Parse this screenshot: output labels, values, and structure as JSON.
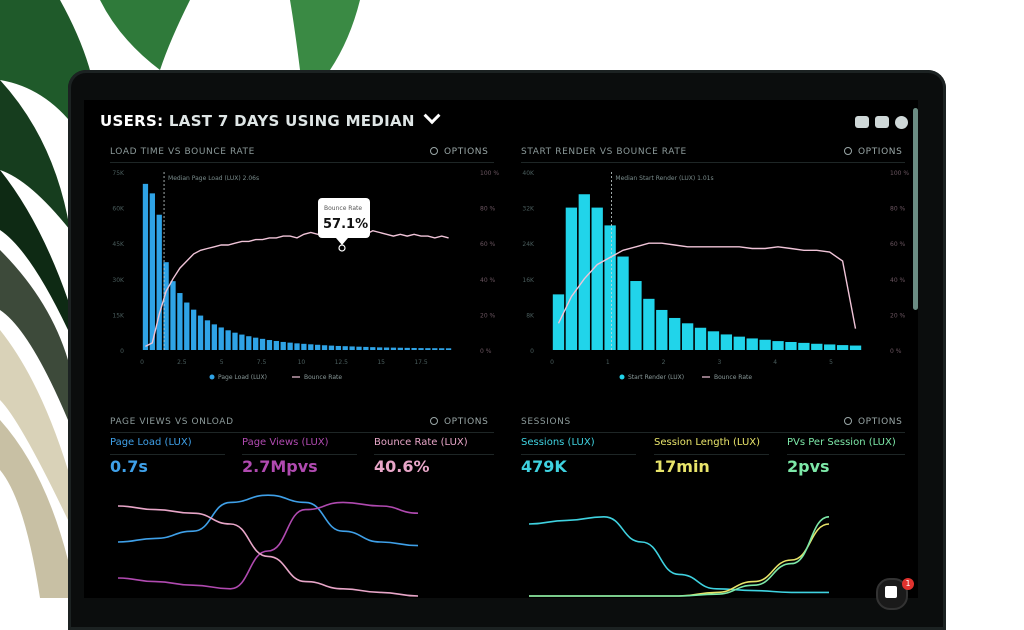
{
  "header": {
    "users": "USERS:",
    "range": "LAST 7 DAYS USING MEDIAN"
  },
  "panels": {
    "load_vs_bounce": {
      "title": "LOAD TIME VS BOUNCE RATE",
      "options": "OPTIONS",
      "annotation": "Median Page Load (LUX) 2.06s",
      "tooltip_label": "Bounce Rate",
      "tooltip_value": "57.1%",
      "legend": [
        "Page Load (LUX)",
        "Bounce Rate"
      ]
    },
    "render_vs_bounce": {
      "title": "START RENDER VS BOUNCE RATE",
      "options": "OPTIONS",
      "annotation": "Median Start Render (LUX) 1.01s",
      "legend": [
        "Start Render (LUX)",
        "Bounce Rate"
      ]
    },
    "page_views": {
      "title": "PAGE VIEWS VS ONLOAD",
      "options": "OPTIONS",
      "kpis": [
        {
          "label": "Page Load (LUX)",
          "value": "0.7s",
          "color": "#3fa0e8"
        },
        {
          "label": "Page Views (LUX)",
          "value": "2.7Mpvs",
          "color": "#b04ab0"
        },
        {
          "label": "Bounce Rate (LUX)",
          "value": "40.6%",
          "color": "#e8a6c8"
        }
      ]
    },
    "sessions": {
      "title": "SESSIONS",
      "options": "OPTIONS",
      "kpis": [
        {
          "label": "Sessions (LUX)",
          "value": "479K",
          "color": "#3fd2e0"
        },
        {
          "label": "Session Length (LUX)",
          "value": "17min",
          "color": "#e8e46a"
        },
        {
          "label": "PVs Per Session (LUX)",
          "value": "2pvs",
          "color": "#7de8a8"
        }
      ]
    }
  },
  "chart_data": [
    {
      "type": "bar",
      "title": "LOAD TIME VS BOUNCE RATE",
      "x_ticks": [
        "0",
        "2.5",
        "5",
        "7.5",
        "10",
        "12.5",
        "15",
        "17.5"
      ],
      "y_ticks_left": [
        "0",
        "15K",
        "30K",
        "45K",
        "60K",
        "75K"
      ],
      "y_ticks_right": [
        "0 %",
        "20 %",
        "40 %",
        "60 %",
        "80 %",
        "100 %"
      ],
      "ylim": [
        0,
        75000
      ],
      "series": [
        {
          "name": "Page Load (LUX)",
          "color": "#2fa3e6",
          "values": [
            70000,
            66000,
            57000,
            37000,
            29000,
            24000,
            20000,
            17000,
            14500,
            12500,
            10800,
            9500,
            8300,
            7300,
            6500,
            5800,
            5200,
            4700,
            4200,
            3800,
            3400,
            3100,
            2800,
            2600,
            2400,
            2200,
            2000,
            1850,
            1700,
            1600,
            1500,
            1400,
            1300,
            1200,
            1100,
            1050,
            1000,
            950,
            900,
            850,
            800,
            780,
            760,
            740,
            720
          ]
        },
        {
          "name": "Bounce Rate",
          "color": "#f0c4d8",
          "values": [
            2,
            4,
            20,
            33,
            40,
            46,
            50,
            54,
            56,
            57,
            58,
            59,
            59,
            60,
            61,
            61,
            62,
            62,
            63,
            63,
            64,
            64,
            63,
            65,
            66,
            65,
            66,
            67,
            66,
            67,
            68,
            66,
            65,
            67,
            66,
            65,
            64,
            65,
            64,
            65,
            64,
            64,
            63,
            64,
            63
          ]
        }
      ]
    },
    {
      "type": "bar",
      "title": "START RENDER VS BOUNCE RATE",
      "x_ticks": [
        "0",
        "1",
        "2",
        "3",
        "4",
        "5"
      ],
      "y_ticks_left": [
        "0",
        "8K",
        "16K",
        "24K",
        "32K",
        "40K"
      ],
      "y_ticks_right": [
        "0 %",
        "20 %",
        "40 %",
        "60 %",
        "80 %",
        "100 %"
      ],
      "ylim": [
        0,
        40000
      ],
      "series": [
        {
          "name": "Start Render (LUX)",
          "color": "#21d4ea",
          "values": [
            12500,
            32000,
            35000,
            32000,
            28000,
            21000,
            15500,
            11500,
            9000,
            7200,
            6000,
            5000,
            4200,
            3500,
            3000,
            2600,
            2300,
            2000,
            1800,
            1600,
            1400,
            1250,
            1100,
            1000
          ]
        },
        {
          "name": "Bounce Rate",
          "color": "#f0c4d8",
          "values": [
            15,
            30,
            40,
            48,
            52,
            56,
            58,
            60,
            60,
            59,
            58,
            58,
            58,
            58,
            58,
            57,
            57,
            58,
            57,
            56,
            56,
            55,
            50,
            12
          ]
        }
      ]
    },
    {
      "type": "line",
      "title": "PAGE VIEWS VS ONLOAD",
      "series": [
        {
          "name": "Page Load (LUX)",
          "color": "#3fa0e8",
          "values": [
            30,
            32,
            36,
            52,
            56,
            52,
            36,
            30,
            28
          ]
        },
        {
          "name": "Page Views (LUX)",
          "color": "#b04ab0",
          "values": [
            10,
            8,
            6,
            4,
            25,
            48,
            52,
            50,
            46
          ]
        },
        {
          "name": "Bounce Rate (LUX)",
          "color": "#e8a6c8",
          "values": [
            50,
            48,
            46,
            40,
            22,
            8,
            4,
            2,
            0
          ]
        }
      ]
    },
    {
      "type": "line",
      "title": "SESSIONS",
      "series": [
        {
          "name": "Sessions (LUX)",
          "color": "#3fd2e0",
          "values": [
            40,
            42,
            44,
            30,
            12,
            4,
            3,
            2,
            2
          ]
        },
        {
          "name": "Session Length (LUX)",
          "color": "#e8e46a",
          "values": [
            0,
            0,
            0,
            0,
            0,
            2,
            8,
            20,
            40
          ]
        },
        {
          "name": "PVs Per Session (LUX)",
          "color": "#7de8a8",
          "values": [
            0,
            0,
            0,
            0,
            0,
            1,
            6,
            18,
            44
          ]
        }
      ]
    }
  ]
}
